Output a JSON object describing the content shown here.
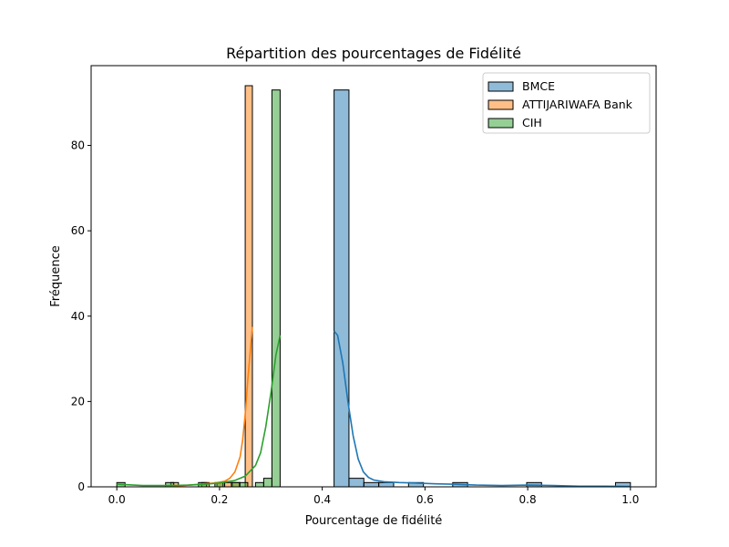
{
  "chart_data": {
    "type": "bar",
    "title": "Répartition des pourcentages de Fidélité",
    "xlabel": "Pourcentage de fidélité",
    "ylabel": "Fréquence",
    "xlim": [
      -0.05,
      1.05
    ],
    "ylim": [
      0,
      98.7
    ],
    "xticks": [
      "0.0",
      "0.2",
      "0.4",
      "0.6",
      "0.8",
      "1.0"
    ],
    "yticks": [
      "0",
      "20",
      "40",
      "60",
      "80"
    ],
    "grid": false,
    "legend_position": "top-right",
    "legend": [
      "BMCE",
      "ATTIJARIWAFA Bank",
      "CIH"
    ],
    "series": [
      {
        "name": "BMCE",
        "fill": "#1f77b4",
        "line": "#1f77b4",
        "bins": [
          {
            "x0": 0.423,
            "x1": 0.452,
            "count": 93
          },
          {
            "x0": 0.452,
            "x1": 0.481,
            "count": 2
          },
          {
            "x0": 0.481,
            "x1": 0.51,
            "count": 1
          },
          {
            "x0": 0.51,
            "x1": 0.539,
            "count": 1
          },
          {
            "x0": 0.568,
            "x1": 0.597,
            "count": 1
          },
          {
            "x0": 0.654,
            "x1": 0.683,
            "count": 1
          },
          {
            "x0": 0.798,
            "x1": 0.827,
            "count": 1
          },
          {
            "x0": 0.971,
            "x1": 1.0,
            "count": 1
          }
        ],
        "kde": [
          [
            0.423,
            36.5
          ],
          [
            0.43,
            35.5
          ],
          [
            0.44,
            29
          ],
          [
            0.45,
            20
          ],
          [
            0.46,
            12
          ],
          [
            0.47,
            6.5
          ],
          [
            0.48,
            3.5
          ],
          [
            0.49,
            2.2
          ],
          [
            0.5,
            1.6
          ],
          [
            0.52,
            1.2
          ],
          [
            0.55,
            1.0
          ],
          [
            0.58,
            0.9
          ],
          [
            0.62,
            0.7
          ],
          [
            0.66,
            0.6
          ],
          [
            0.7,
            0.4
          ],
          [
            0.75,
            0.3
          ],
          [
            0.8,
            0.4
          ],
          [
            0.85,
            0.3
          ],
          [
            0.9,
            0.15
          ],
          [
            0.95,
            0.15
          ],
          [
            1.0,
            0.1
          ]
        ]
      },
      {
        "name": "ATTIJARIWAFA Bank",
        "fill": "#ff7f0e",
        "line": "#ff7f0e",
        "bins": [
          {
            "x0": 0.105,
            "x1": 0.12,
            "count": 1
          },
          {
            "x0": 0.165,
            "x1": 0.18,
            "count": 1
          },
          {
            "x0": 0.195,
            "x1": 0.21,
            "count": 1
          },
          {
            "x0": 0.21,
            "x1": 0.225,
            "count": 1
          },
          {
            "x0": 0.225,
            "x1": 0.24,
            "count": 1
          },
          {
            "x0": 0.25,
            "x1": 0.264,
            "count": 94
          }
        ],
        "kde": [
          [
            0.105,
            0.2
          ],
          [
            0.13,
            0.3
          ],
          [
            0.16,
            0.6
          ],
          [
            0.19,
            0.9
          ],
          [
            0.21,
            1.3
          ],
          [
            0.22,
            2.0
          ],
          [
            0.23,
            3.5
          ],
          [
            0.24,
            7
          ],
          [
            0.245,
            11
          ],
          [
            0.25,
            17
          ],
          [
            0.255,
            25
          ],
          [
            0.26,
            32
          ],
          [
            0.264,
            37.5
          ]
        ]
      },
      {
        "name": "CIH",
        "fill": "#2ca02c",
        "line": "#2ca02c",
        "bins": [
          {
            "x0": 0.0,
            "x1": 0.016,
            "count": 1
          },
          {
            "x0": 0.095,
            "x1": 0.111,
            "count": 1
          },
          {
            "x0": 0.159,
            "x1": 0.175,
            "count": 1
          },
          {
            "x0": 0.191,
            "x1": 0.207,
            "count": 1
          },
          {
            "x0": 0.223,
            "x1": 0.239,
            "count": 1
          },
          {
            "x0": 0.239,
            "x1": 0.255,
            "count": 1
          },
          {
            "x0": 0.27,
            "x1": 0.286,
            "count": 1
          },
          {
            "x0": 0.286,
            "x1": 0.302,
            "count": 2
          },
          {
            "x0": 0.302,
            "x1": 0.318,
            "count": 93
          }
        ],
        "kde": [
          [
            0.0,
            0.6
          ],
          [
            0.02,
            0.5
          ],
          [
            0.05,
            0.3
          ],
          [
            0.08,
            0.3
          ],
          [
            0.11,
            0.3
          ],
          [
            0.14,
            0.4
          ],
          [
            0.17,
            0.6
          ],
          [
            0.2,
            0.9
          ],
          [
            0.23,
            1.5
          ],
          [
            0.25,
            2.5
          ],
          [
            0.27,
            5
          ],
          [
            0.28,
            8
          ],
          [
            0.29,
            14
          ],
          [
            0.3,
            22
          ],
          [
            0.31,
            31
          ],
          [
            0.318,
            35.5
          ]
        ]
      }
    ]
  }
}
